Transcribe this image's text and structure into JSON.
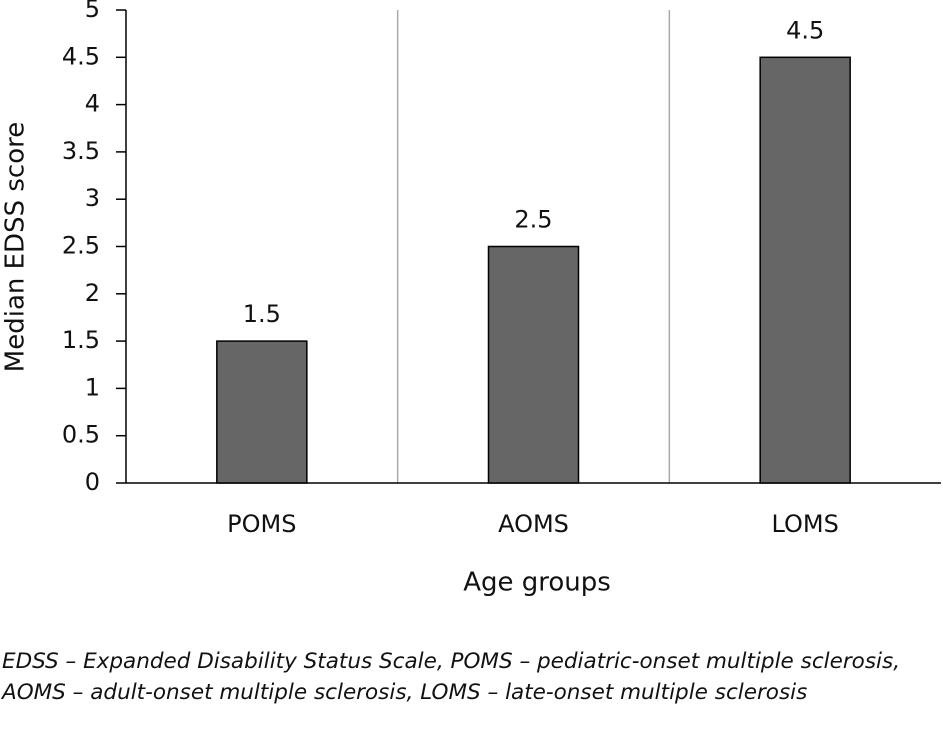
{
  "chart_data": {
    "type": "bar",
    "categories": [
      "POMS",
      "AOMS",
      "LOMS"
    ],
    "values": [
      1.5,
      2.5,
      4.5
    ],
    "color": "#666666",
    "ylim": [
      0,
      5
    ],
    "yticks": [
      0,
      0.5,
      1,
      1.5,
      2,
      2.5,
      3,
      3.5,
      4,
      4.5,
      5
    ],
    "x_label": "Age groups",
    "y_label": "Median EDSS score",
    "category_separators": true,
    "note": "EDSS – Expanded Disability Status Scale, POMS – pediatric-onset multiple sclerosis, AOMS – adult-onset multiple sclerosis, LOMS – late-onset multiple sclerosis"
  }
}
